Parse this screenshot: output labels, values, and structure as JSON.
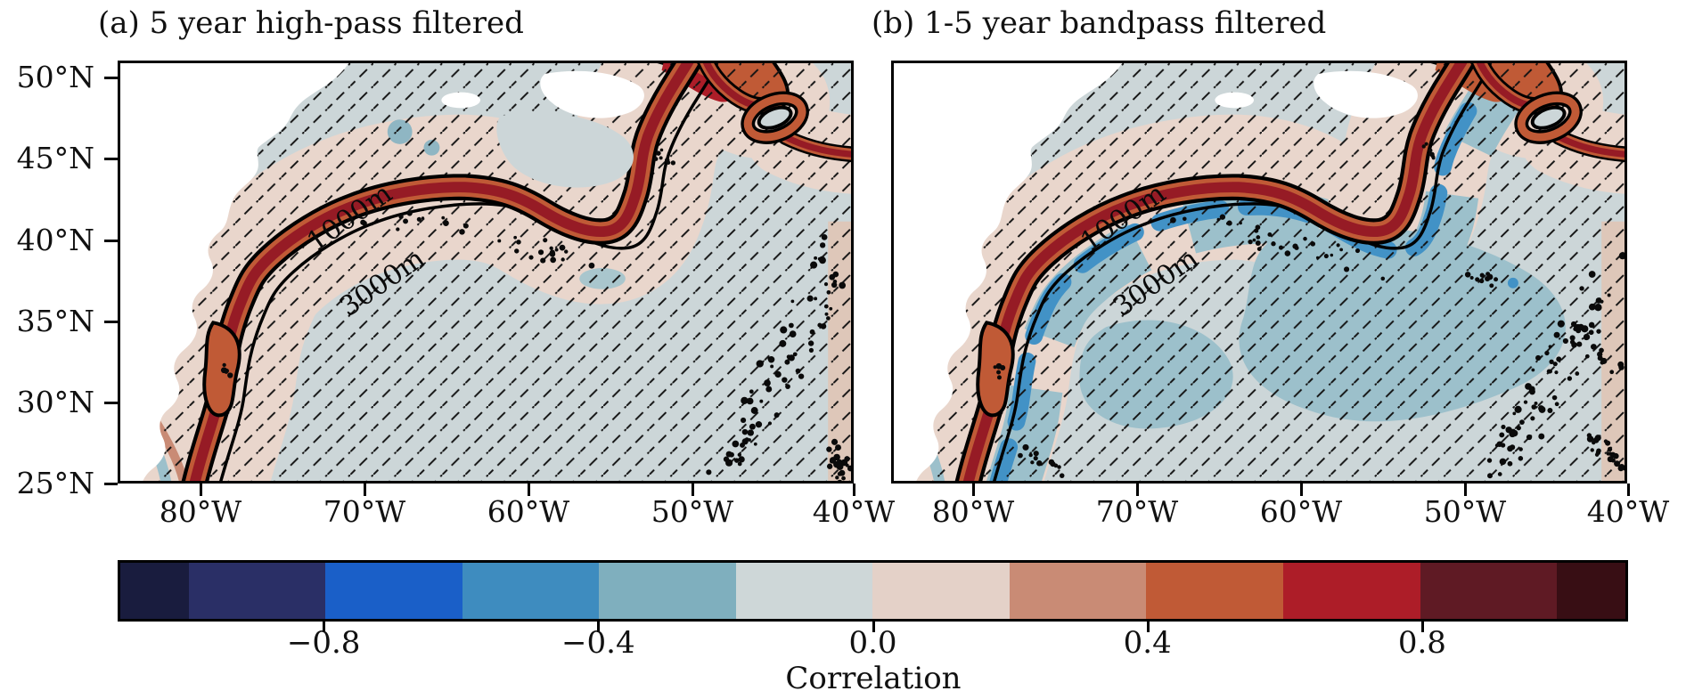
{
  "figure": {
    "panels": [
      {
        "title": "(a) 5 year high-pass filtered",
        "contour_labels": [
          "1000m",
          "3000m"
        ]
      },
      {
        "title": "(b) 1-5 year bandpass filtered",
        "contour_labels": [
          "1000m",
          "3000m"
        ]
      }
    ],
    "yaxis": {
      "ticks": [
        "50°N",
        "45°N",
        "40°N",
        "35°N",
        "30°N",
        "25°N"
      ]
    },
    "xaxis": {
      "ticks": [
        "80°W",
        "70°W",
        "60°W",
        "50°W",
        "40°W"
      ]
    },
    "colorbar": {
      "label": "Correlation",
      "tick_labels": [
        "−0.8",
        "−0.4",
        "0.0",
        "0.4",
        "0.8"
      ],
      "tick_values": [
        -0.8,
        -0.4,
        0.0,
        0.4,
        0.8
      ],
      "vmin": -1.1,
      "vmax": 1.1,
      "segments": [
        {
          "from": -1.1,
          "to": -1.0,
          "color": "#191c3e"
        },
        {
          "from": -1.0,
          "to": -0.8,
          "color": "#2a2f66"
        },
        {
          "from": -0.8,
          "to": -0.6,
          "color": "#1a5fc8"
        },
        {
          "from": -0.6,
          "to": -0.4,
          "color": "#3e8cbf"
        },
        {
          "from": -0.4,
          "to": -0.2,
          "color": "#7fafbe"
        },
        {
          "from": -0.2,
          "to": 0.0,
          "color": "#ced7d8"
        },
        {
          "from": 0.0,
          "to": 0.2,
          "color": "#e4d1c8"
        },
        {
          "from": 0.2,
          "to": 0.4,
          "color": "#c98b75"
        },
        {
          "from": 0.4,
          "to": 0.6,
          "color": "#c05a36"
        },
        {
          "from": 0.6,
          "to": 0.8,
          "color": "#ad1d28"
        },
        {
          "from": 0.8,
          "to": 1.0,
          "color": "#5f1a24"
        },
        {
          "from": 1.0,
          "to": 1.1,
          "color": "#380e14"
        }
      ]
    },
    "map_colors": {
      "land": "#ffffff",
      "base": "#ccd6d8",
      "pink": "#e9d6cc",
      "salmon": "#c98b75",
      "orange": "#c05a36",
      "dark_red": "#961b25",
      "crimson": "#ad1d28",
      "light_blue": "#a9c6cd",
      "medium_blue": "#9cc0cb",
      "strong_blue": "#4292c6",
      "contour": "#000000"
    }
  },
  "chart_data": {
    "type": "heatmap",
    "subtype": "two-panel geographic correlation map (filled contours over North Atlantic)",
    "panels": [
      {
        "label": "(a) 5 year high-pass filtered",
        "description": "High positive correlation (0.6 to 1.0) band along the continental slope between the 1000m and 3000m isobaths; weak positive (0 to 0.2) near the coast and north of the band; weak negative (-0.2 to 0) over the ocean interior."
      },
      {
        "label": "(b) 1-5 year bandpass filtered",
        "description": "Same high positive correlation band along the slope between 1000m and 3000m isobaths; moderate negative correlation (-0.6 to -0.2) just offshore of the band and over the subtropical interior."
      }
    ],
    "x": {
      "tick_labels": [
        "80°W",
        "70°W",
        "60°W",
        "50°W",
        "40°W"
      ],
      "range": [
        "85°W",
        "40°W"
      ]
    },
    "y": {
      "tick_labels": [
        "50°N",
        "45°N",
        "40°N",
        "35°N",
        "30°N",
        "25°N"
      ],
      "range": [
        "25°N",
        "51°N"
      ]
    },
    "colorbar": {
      "label": "Correlation",
      "tick_labels": [
        "−0.8",
        "−0.4",
        "0.0",
        "0.4",
        "0.8"
      ],
      "levels": [
        -1.0,
        -0.8,
        -0.6,
        -0.4,
        -0.2,
        0.0,
        0.2,
        0.4,
        0.6,
        0.8,
        1.0
      ],
      "colors": [
        "#191c3e",
        "#2a2f66",
        "#1a5fc8",
        "#3e8cbf",
        "#7fafbe",
        "#ced7d8",
        "#e4d1c8",
        "#c98b75",
        "#c05a36",
        "#ad1d28",
        "#5f1a24",
        "#380e14"
      ]
    },
    "contour_labels": [
      "1000m",
      "3000m"
    ],
    "overlays": [
      "thick black bathymetry contours (1000m, 3000m)",
      "diagonal hatching over most of the ocean",
      "clusters of black stippling dots (seamounts / ridge)",
      "white land mask in the northwest corner"
    ]
  }
}
